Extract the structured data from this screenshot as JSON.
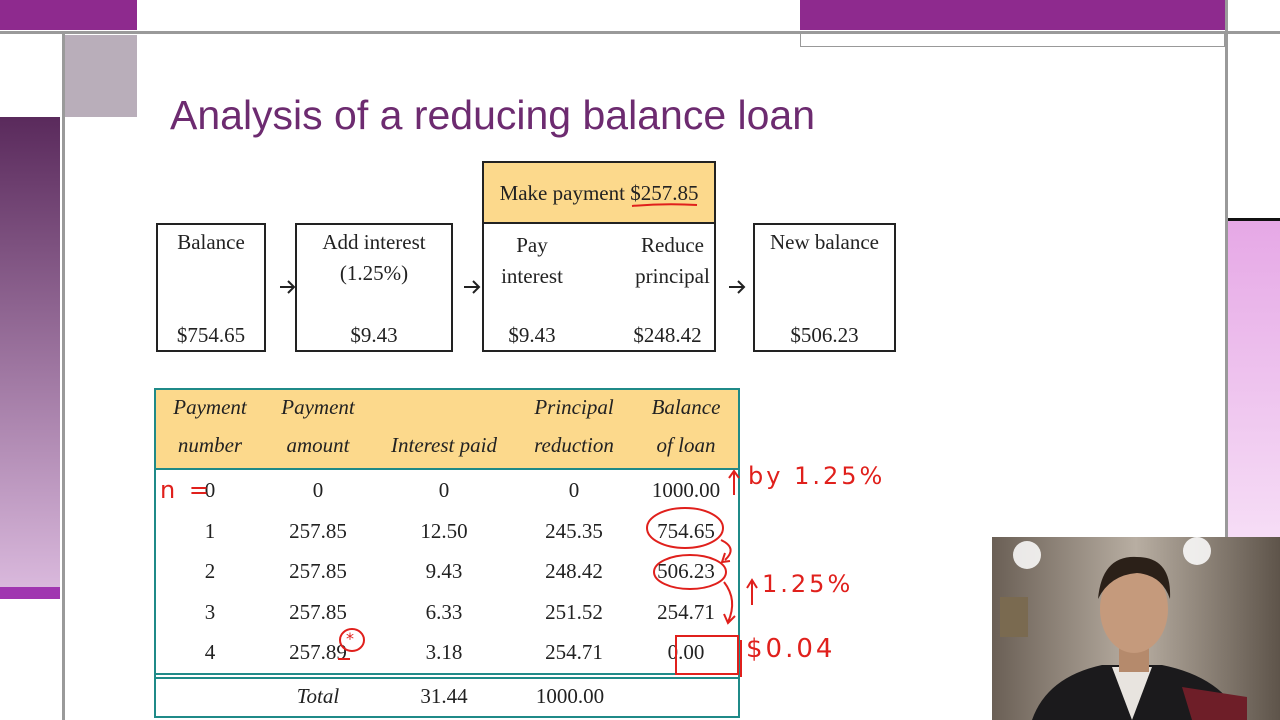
{
  "slide": {
    "title": "Analysis of a reducing balance loan"
  },
  "flow": {
    "balance": {
      "label": "Balance",
      "amount": "$754.65"
    },
    "interest": {
      "label": "Add interest",
      "rate": "(1.25%)",
      "amount": "$9.43"
    },
    "payment": {
      "header_label": "Make payment",
      "header_amount": "$257.85",
      "pay_interest_label": "Pay interest",
      "pay_interest_amount": "$9.43",
      "reduce_label": "Reduce principal",
      "reduce_amount": "$248.42"
    },
    "new_balance": {
      "label": "New balance",
      "amount": "$506.23"
    }
  },
  "table": {
    "headers": [
      [
        "Payment",
        "number"
      ],
      [
        "Payment",
        "amount"
      ],
      [
        "Interest paid"
      ],
      [
        "Principal",
        "reduction"
      ],
      [
        "Balance",
        "of loan"
      ]
    ],
    "rows": [
      [
        "0",
        "0",
        "0",
        "0",
        "1000.00"
      ],
      [
        "1",
        "257.85",
        "12.50",
        "245.35",
        "754.65"
      ],
      [
        "2",
        "257.85",
        "9.43",
        "248.42",
        "506.23"
      ],
      [
        "3",
        "257.85",
        "6.33",
        "251.52",
        "254.71"
      ],
      [
        "4",
        "257.89",
        "3.18",
        "254.71",
        "0.00"
      ]
    ],
    "total": {
      "label": "Total",
      "interest": "31.44",
      "principal": "1000.00"
    }
  },
  "annotations": {
    "n": "n =",
    "rate_1": "by 1.25%",
    "rate_2": "1.25%",
    "difference": "$0.04",
    "star": "*"
  }
}
